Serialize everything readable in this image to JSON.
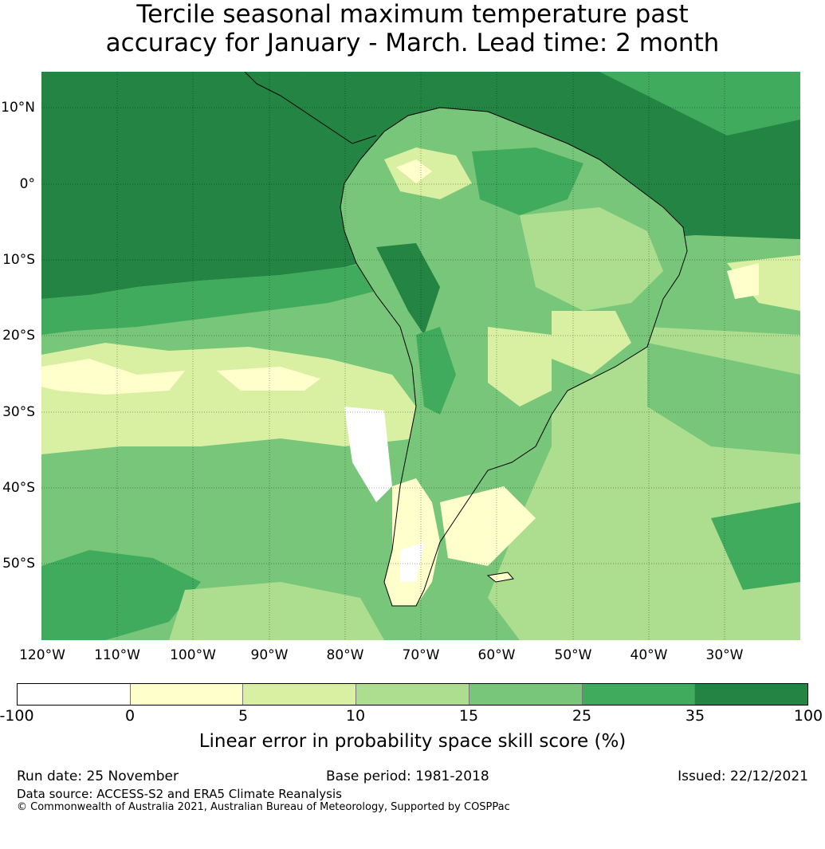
{
  "title": {
    "line1": "Tercile seasonal maximum temperature past",
    "line2": "accuracy for January - March. Lead time: 2 month"
  },
  "map": {
    "region": "South America",
    "lat_labels": [
      "10°N",
      "0°",
      "10°S",
      "20°S",
      "30°S",
      "40°S",
      "50°S"
    ],
    "lon_labels": [
      "120°W",
      "110°W",
      "100°W",
      "90°W",
      "80°W",
      "70°W",
      "60°W",
      "50°W",
      "40°W",
      "30°W"
    ],
    "colors": {
      "neg": "#ffffff",
      "c0_5": "#ffffcc",
      "c5_10": "#d9f0a3",
      "c10_15": "#addd8e",
      "c15_25": "#78c679",
      "c25_35": "#41ab5d",
      "c35_100": "#238443"
    }
  },
  "colorbar": {
    "ticks": [
      "-100",
      "0",
      "5",
      "10",
      "15",
      "25",
      "35",
      "100"
    ],
    "label": "Linear error in probability space skill score (%)"
  },
  "footer": {
    "run_date": "Run date: 25 November",
    "base_period": "Base period: 1981-2018",
    "issued": "Issued: 22/12/2021",
    "data_source": "Data source: ACCESS-S2 and ERA5 Climate Reanalysis",
    "copyright": "© Commonwealth of Australia 2021, Australian Bureau of Meteorology, Supported by COSPPac"
  }
}
